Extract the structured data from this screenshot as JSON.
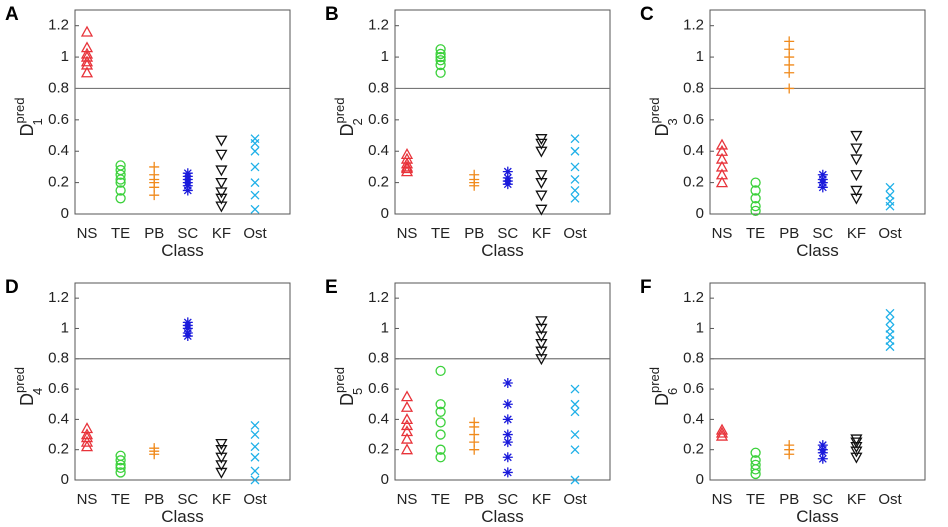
{
  "chart_data": [
    {
      "type": "scatter",
      "panel": "A",
      "ylabel": {
        "base": "D",
        "sup": "pred",
        "sub": "1"
      },
      "xlabel": "Class",
      "categories": [
        "NS",
        "TE",
        "PB",
        "SC",
        "KF",
        "Ost"
      ],
      "colors": [
        "#e8333a",
        "#3bd13b",
        "#f08a1c",
        "#1a1adb",
        "#111111",
        "#1fb0e8"
      ],
      "markers": [
        "triangle-up",
        "circle",
        "plus",
        "asterisk",
        "triangle-down",
        "x"
      ],
      "groups": [
        [
          0.9,
          0.95,
          0.97,
          1.0,
          1.02,
          1.06,
          1.16
        ],
        [
          0.1,
          0.15,
          0.2,
          0.22,
          0.25,
          0.28,
          0.31
        ],
        [
          0.12,
          0.17,
          0.2,
          0.22,
          0.25,
          0.3
        ],
        [
          0.15,
          0.18,
          0.2,
          0.22,
          0.24,
          0.26
        ],
        [
          0.05,
          0.1,
          0.14,
          0.2,
          0.28,
          0.38,
          0.47
        ],
        [
          0.03,
          0.12,
          0.2,
          0.3,
          0.4,
          0.45,
          0.48
        ]
      ],
      "ylim": [
        0,
        1.3
      ],
      "yticks": [
        0,
        0.2,
        0.4,
        0.6,
        0.8,
        1,
        1.2
      ],
      "reference_line": 0.8
    },
    {
      "type": "scatter",
      "panel": "B",
      "ylabel": {
        "base": "D",
        "sup": "pred",
        "sub": "2"
      },
      "xlabel": "Class",
      "categories": [
        "NS",
        "TE",
        "PB",
        "SC",
        "KF",
        "Ost"
      ],
      "colors": [
        "#e8333a",
        "#3bd13b",
        "#f08a1c",
        "#1a1adb",
        "#111111",
        "#1fb0e8"
      ],
      "markers": [
        "triangle-up",
        "circle",
        "plus",
        "asterisk",
        "triangle-down",
        "x"
      ],
      "groups": [
        [
          0.27,
          0.29,
          0.3,
          0.32,
          0.35,
          0.38
        ],
        [
          0.9,
          0.95,
          0.98,
          1.0,
          1.02,
          1.05
        ],
        [
          0.18,
          0.2,
          0.22,
          0.25
        ],
        [
          0.19,
          0.21,
          0.23,
          0.27
        ],
        [
          0.03,
          0.12,
          0.2,
          0.25,
          0.4,
          0.45,
          0.48
        ],
        [
          0.1,
          0.15,
          0.22,
          0.3,
          0.4,
          0.48
        ]
      ],
      "ylim": [
        0,
        1.3
      ],
      "yticks": [
        0,
        0.2,
        0.4,
        0.6,
        0.8,
        1,
        1.2
      ],
      "reference_line": 0.8
    },
    {
      "type": "scatter",
      "panel": "C",
      "ylabel": {
        "base": "D",
        "sup": "pred",
        "sub": "3"
      },
      "xlabel": "Class",
      "categories": [
        "NS",
        "TE",
        "PB",
        "SC",
        "KF",
        "Ost"
      ],
      "colors": [
        "#e8333a",
        "#3bd13b",
        "#f08a1c",
        "#1a1adb",
        "#111111",
        "#1fb0e8"
      ],
      "markers": [
        "triangle-up",
        "circle",
        "plus",
        "asterisk",
        "triangle-down",
        "x"
      ],
      "groups": [
        [
          0.2,
          0.25,
          0.3,
          0.35,
          0.4,
          0.44
        ],
        [
          0.02,
          0.05,
          0.1,
          0.15,
          0.2
        ],
        [
          0.8,
          0.9,
          0.95,
          1.0,
          1.05,
          1.1
        ],
        [
          0.17,
          0.2,
          0.22,
          0.25
        ],
        [
          0.1,
          0.15,
          0.25,
          0.35,
          0.42,
          0.5
        ],
        [
          0.05,
          0.08,
          0.12,
          0.17
        ]
      ],
      "ylim": [
        0,
        1.3
      ],
      "yticks": [
        0,
        0.2,
        0.4,
        0.6,
        0.8,
        1,
        1.2
      ],
      "reference_line": 0.8
    },
    {
      "type": "scatter",
      "panel": "D",
      "ylabel": {
        "base": "D",
        "sup": "pred",
        "sub": "4"
      },
      "xlabel": "Class",
      "categories": [
        "NS",
        "TE",
        "PB",
        "SC",
        "KF",
        "Ost"
      ],
      "colors": [
        "#e8333a",
        "#3bd13b",
        "#f08a1c",
        "#1a1adb",
        "#111111",
        "#1fb0e8"
      ],
      "markers": [
        "triangle-up",
        "circle",
        "plus",
        "asterisk",
        "triangle-down",
        "x"
      ],
      "groups": [
        [
          0.22,
          0.25,
          0.28,
          0.3,
          0.34
        ],
        [
          0.05,
          0.08,
          0.1,
          0.13,
          0.16
        ],
        [
          0.17,
          0.19,
          0.21
        ],
        [
          0.95,
          0.97,
          1.0,
          1.02,
          1.04
        ],
        [
          0.05,
          0.1,
          0.15,
          0.2,
          0.24
        ],
        [
          0.0,
          0.06,
          0.15,
          0.22,
          0.3,
          0.36
        ]
      ],
      "ylim": [
        0,
        1.3
      ],
      "yticks": [
        0,
        0.2,
        0.4,
        0.6,
        0.8,
        1,
        1.2
      ],
      "reference_line": 0.8
    },
    {
      "type": "scatter",
      "panel": "E",
      "ylabel": {
        "base": "D",
        "sup": "pred",
        "sub": "5"
      },
      "xlabel": "Class",
      "categories": [
        "NS",
        "TE",
        "PB",
        "SC",
        "KF",
        "Ost"
      ],
      "colors": [
        "#e8333a",
        "#3bd13b",
        "#f08a1c",
        "#1a1adb",
        "#111111",
        "#1fb0e8"
      ],
      "markers": [
        "triangle-up",
        "circle",
        "plus",
        "asterisk",
        "triangle-down",
        "x"
      ],
      "groups": [
        [
          0.2,
          0.27,
          0.32,
          0.36,
          0.4,
          0.48,
          0.55
        ],
        [
          0.15,
          0.2,
          0.3,
          0.38,
          0.45,
          0.5,
          0.72
        ],
        [
          0.2,
          0.25,
          0.3,
          0.35,
          0.38
        ],
        [
          0.05,
          0.15,
          0.25,
          0.3,
          0.4,
          0.5,
          0.64
        ],
        [
          0.8,
          0.85,
          0.9,
          0.95,
          1.0,
          1.05
        ],
        [
          0.0,
          0.2,
          0.3,
          0.45,
          0.5,
          0.6
        ]
      ],
      "ylim": [
        0,
        1.3
      ],
      "yticks": [
        0,
        0.2,
        0.4,
        0.6,
        0.8,
        1,
        1.2
      ],
      "reference_line": 0.8
    },
    {
      "type": "scatter",
      "panel": "F",
      "ylabel": {
        "base": "D",
        "sup": "pred",
        "sub": "6"
      },
      "xlabel": "Class",
      "categories": [
        "NS",
        "TE",
        "PB",
        "SC",
        "KF",
        "Ost"
      ],
      "colors": [
        "#e8333a",
        "#3bd13b",
        "#f08a1c",
        "#1a1adb",
        "#111111",
        "#1fb0e8"
      ],
      "markers": [
        "triangle-up",
        "circle",
        "plus",
        "asterisk",
        "triangle-down",
        "x"
      ],
      "groups": [
        [
          0.29,
          0.31,
          0.33
        ],
        [
          0.04,
          0.07,
          0.1,
          0.13,
          0.18
        ],
        [
          0.17,
          0.2,
          0.23
        ],
        [
          0.14,
          0.18,
          0.2,
          0.23
        ],
        [
          0.15,
          0.19,
          0.22,
          0.25,
          0.27
        ],
        [
          0.88,
          0.92,
          0.96,
          1.0,
          1.05,
          1.1
        ]
      ],
      "ylim": [
        0,
        1.3
      ],
      "yticks": [
        0,
        0.2,
        0.4,
        0.6,
        0.8,
        1,
        1.2
      ],
      "reference_line": 0.8
    }
  ]
}
